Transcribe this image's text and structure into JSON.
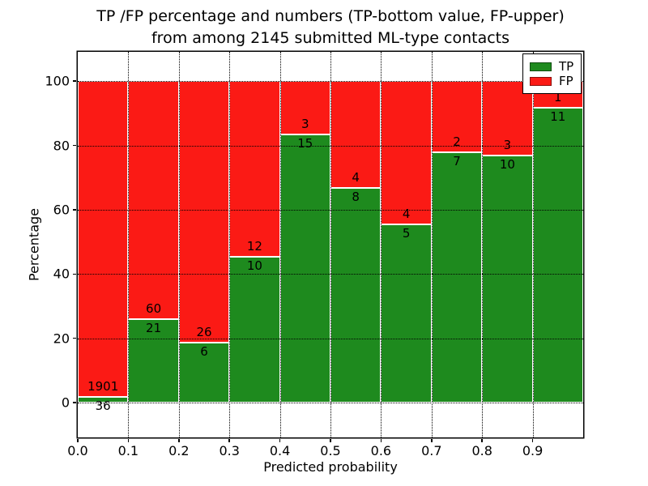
{
  "chart_data": {
    "type": "bar",
    "stacked": true,
    "normalized": "percent",
    "title_line1": "TP /FP percentage and numbers (TP-bottom value, FP-upper)",
    "title_line2": "from among 2145 submitted ML-type contacts",
    "xlabel": "Predicted probability",
    "ylabel": "Percentage",
    "bin_edges": [
      0.0,
      0.1,
      0.2,
      0.3,
      0.4,
      0.5,
      0.6,
      0.7,
      0.8,
      0.9,
      1.0
    ],
    "categories": [
      "0.0-0.1",
      "0.1-0.2",
      "0.2-0.3",
      "0.3-0.4",
      "0.4-0.5",
      "0.5-0.6",
      "0.6-0.7",
      "0.7-0.8",
      "0.8-0.9",
      "0.9-1.0"
    ],
    "series": [
      {
        "name": "TP",
        "color": "#1e8a1e",
        "counts": [
          36,
          21,
          6,
          10,
          15,
          8,
          5,
          7,
          10,
          11
        ]
      },
      {
        "name": "FP",
        "color": "#fb1a15",
        "counts": [
          1901,
          60,
          26,
          12,
          3,
          4,
          4,
          2,
          3,
          1
        ]
      }
    ],
    "tp_percent": [
      1.86,
      25.93,
      18.75,
      45.45,
      83.33,
      66.67,
      55.56,
      77.78,
      76.92,
      91.67
    ],
    "xticks": [
      0.0,
      0.1,
      0.2,
      0.3,
      0.4,
      0.5,
      0.6,
      0.7,
      0.8,
      0.9
    ],
    "xtick_labels": [
      "0.0",
      "0.1",
      "0.2",
      "0.3",
      "0.4",
      "0.5",
      "0.6",
      "0.7",
      "0.8",
      "0.9"
    ],
    "yticks": [
      0,
      20,
      40,
      60,
      80,
      100
    ],
    "ytick_labels": [
      "0",
      "20",
      "40",
      "60",
      "80",
      "100"
    ],
    "xlim": [
      0.0,
      1.0
    ],
    "ylim": [
      -10.8,
      109.1
    ],
    "grid": {
      "on": true,
      "linestyle": "dotted",
      "color": "#000000"
    },
    "legend": {
      "position": "upper right",
      "edge_color": "#000000",
      "background": "#ffffff"
    },
    "bar_edge_color": "#ffffff"
  }
}
